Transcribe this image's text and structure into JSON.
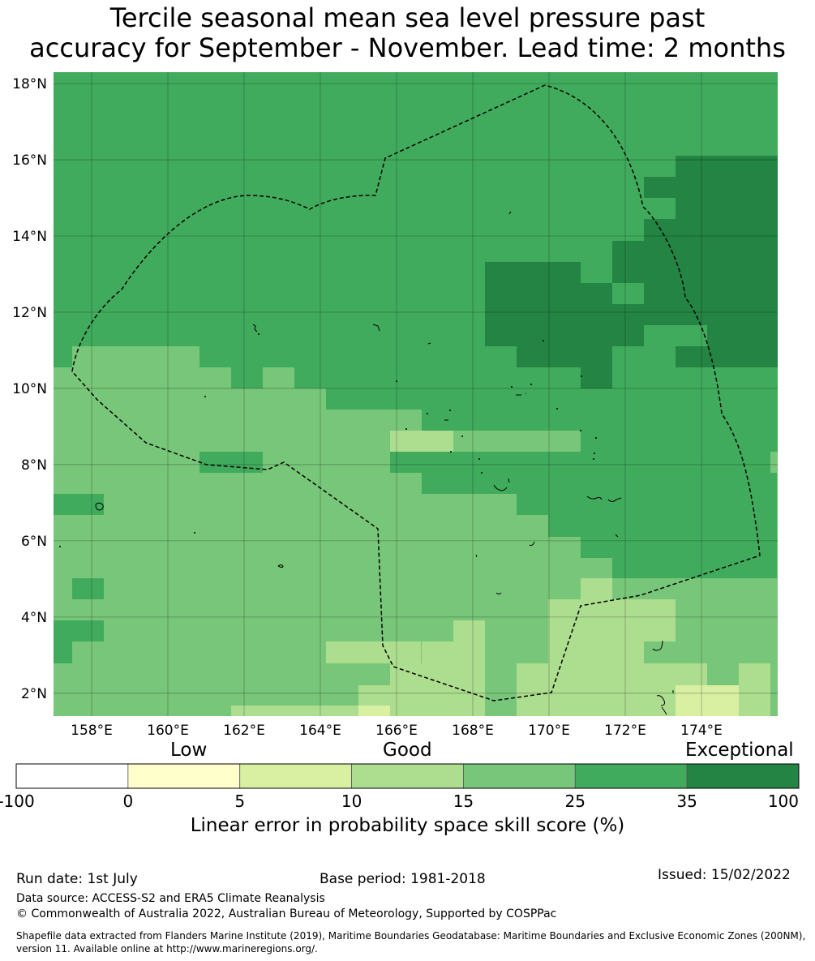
{
  "title": "Tercile seasonal mean sea level pressure past\naccuracy for September - November. Lead time: 2 months",
  "map": {
    "lon_labels": [
      "158°E",
      "160°E",
      "162°E",
      "164°E",
      "166°E",
      "168°E",
      "170°E",
      "172°E",
      "174°E"
    ],
    "lat_labels": [
      "18°N",
      "16°N",
      "14°N",
      "12°N",
      "10°N",
      "8°N",
      "6°N",
      "4°N",
      "2°N"
    ],
    "lon_range": [
      157,
      176
    ],
    "lat_range": [
      1.4,
      18.3
    ],
    "boundary_style": "dashed",
    "colors": {
      "level1": "#ffffcc",
      "level2": "#d9f0a3",
      "level3": "#addd8e",
      "level4": "#78c679",
      "level5": "#41ab5d",
      "level6": "#238443"
    }
  },
  "colorbar": {
    "category_labels": [
      "Low",
      "Good",
      "Exceptional"
    ],
    "ticks": [
      "-100",
      "0",
      "5",
      "10",
      "15",
      "25",
      "35",
      "100"
    ],
    "colors": [
      "#ffffff",
      "#ffffcc",
      "#d9f0a3",
      "#addd8e",
      "#78c679",
      "#41ab5d",
      "#238443"
    ],
    "label": "Linear error in probability space skill score (%)"
  },
  "footer": {
    "run_date": "Run date: 1st July",
    "base_period": "Base period: 1981-2018",
    "issued": "Issued: 15/02/2022",
    "data_source": "Data source: ACCESS-S2 and ERA5 Climate Reanalysis",
    "copyright": "© Commonwealth of Australia 2022, Australian Bureau of Meteorology, Supported by COSPPac",
    "shapefile": "Shapefile data extracted from Flanders Marine Institute (2019), Maritime Boundaries Geodatabase: Maritime Boundaries and Exclusive Economic Zones (200NM), version 11. Available online at http://www.marineregions.org/."
  }
}
